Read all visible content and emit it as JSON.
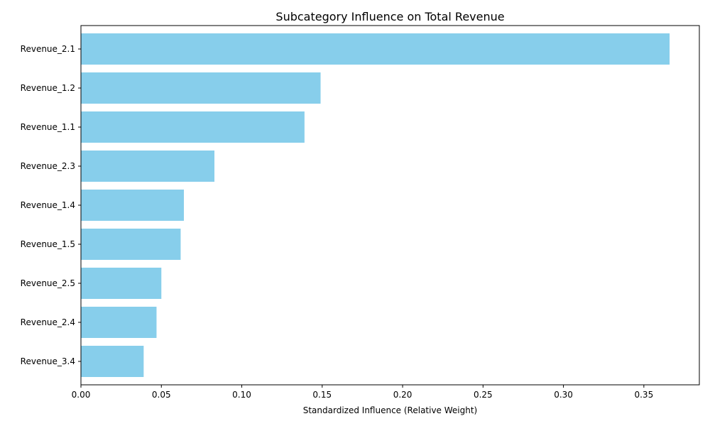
{
  "chart_data": {
    "type": "bar",
    "orientation": "horizontal",
    "title": "Subcategory Influence on Total Revenue",
    "xlabel": "Standardized Influence (Relative Weight)",
    "ylabel": "",
    "categories": [
      "Revenue_2.1",
      "Revenue_1.2",
      "Revenue_1.1",
      "Revenue_2.3",
      "Revenue_1.4",
      "Revenue_1.5",
      "Revenue_2.5",
      "Revenue_2.4",
      "Revenue_3.4"
    ],
    "values": [
      0.366,
      0.149,
      0.139,
      0.083,
      0.064,
      0.062,
      0.05,
      0.047,
      0.039
    ],
    "xlim": [
      0,
      0.3845
    ],
    "xticks": [
      0.0,
      0.05,
      0.1,
      0.15,
      0.2,
      0.25,
      0.3,
      0.35
    ],
    "xtick_labels": [
      "0.00",
      "0.05",
      "0.10",
      "0.15",
      "0.20",
      "0.25",
      "0.30",
      "0.35"
    ],
    "bar_color": "#87ceeb",
    "grid": false,
    "legend": null
  }
}
